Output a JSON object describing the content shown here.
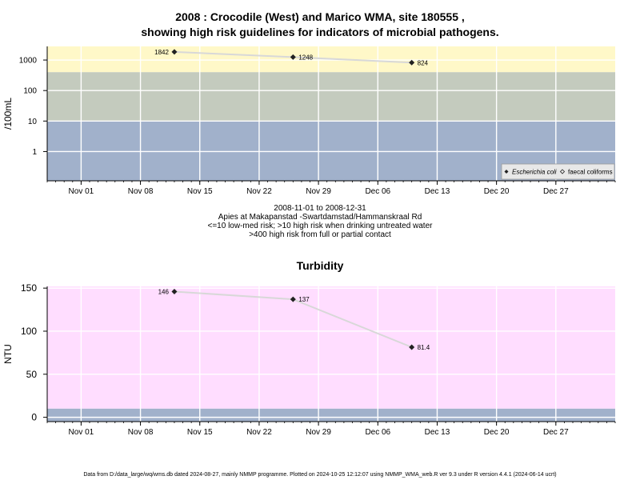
{
  "titles": {
    "main_line1": "2008 : Crocodile (West) and Marico WMA, site 180555 ,",
    "main_line2": "showing high risk guidelines for indicators of microbial pathogens.",
    "caption_line1": "2008-11-01 to 2008-12-31",
    "caption_line2": "Apies at Makapanstad -Swartdamstad/Hammanskraal Rd",
    "caption_line3": "<=10 low-med risk; >10 high risk when drinking untreated water",
    "caption_line4": ">400 high risk from full or partial contact",
    "turbidity": "Turbidity",
    "footer": "Data from D:/data_large/wq/wms.db dated 2024-08-27, mainly NMMP programme. Plotted on 2024-10-25 12:12:07 using NMMP_WMA_web.R ver 9.3 under R version 4.4.1 (2024-06-14 ucrt)"
  },
  "colors": {
    "risk_high": "#fff8c8",
    "risk_mid": "#c4cbbe",
    "risk_low": "#a1b1cb",
    "turbidity_bg": "#ffddff",
    "turbidity_low": "#a1b1cb",
    "grid": "#ffffff",
    "line": "#d8d8d8",
    "marker": "#222222"
  },
  "chart_data": [
    {
      "type": "scatter",
      "title": "",
      "ylabel": "/100mL",
      "y_scale": "log",
      "x_range": [
        "2008-10-28",
        "2009-01-03"
      ],
      "y_range": [
        0.11,
        2800
      ],
      "yticks": [
        1,
        10,
        100,
        1000
      ],
      "ytick_labels": [
        "1",
        "10",
        "100",
        "1000"
      ],
      "xticks": [
        "2008-11-01",
        "2008-11-08",
        "2008-11-15",
        "2008-11-22",
        "2008-11-29",
        "2008-12-06",
        "2008-12-13",
        "2008-12-20",
        "2008-12-27"
      ],
      "xtick_labels": [
        "Nov 01",
        "Nov 08",
        "Nov 15",
        "Nov 22",
        "Nov 29",
        "Dec 06",
        "Dec 13",
        "Dec 20",
        "Dec 27"
      ],
      "bands": [
        {
          "from": 400,
          "to": 2800,
          "color": "risk_high"
        },
        {
          "from": 10,
          "to": 400,
          "color": "risk_mid"
        },
        {
          "from": 0.11,
          "to": 10,
          "color": "risk_low"
        }
      ],
      "grid": true,
      "legend_placement": "bottom-right",
      "legend": [
        {
          "label": "Escherichia coli",
          "marker": "filled-diamond",
          "italic": true
        },
        {
          "label": "faecal coliforms",
          "marker": "open-diamond",
          "italic": false
        }
      ],
      "series": [
        {
          "name": "Escherichia coli",
          "points": [
            {
              "x": "2008-11-12",
              "y": 1842,
              "label": "1842",
              "label_side": "left"
            },
            {
              "x": "2008-11-26",
              "y": 1248,
              "label": "1248",
              "label_side": "right"
            },
            {
              "x": "2008-12-10",
              "y": 824,
              "label": "824",
              "label_side": "right"
            }
          ]
        }
      ]
    },
    {
      "type": "scatter",
      "title": "Turbidity",
      "ylabel": "NTU",
      "y_scale": "linear",
      "x_range": [
        "2008-10-28",
        "2009-01-03"
      ],
      "y_range": [
        -5,
        152
      ],
      "yticks": [
        0,
        50,
        100,
        150
      ],
      "ytick_labels": [
        "0",
        "50",
        "100",
        "150"
      ],
      "xticks": [
        "2008-11-01",
        "2008-11-08",
        "2008-11-15",
        "2008-11-22",
        "2008-11-29",
        "2008-12-06",
        "2008-12-13",
        "2008-12-20",
        "2008-12-27"
      ],
      "xtick_labels": [
        "Nov 01",
        "Nov 08",
        "Nov 15",
        "Nov 22",
        "Nov 29",
        "Dec 06",
        "Dec 13",
        "Dec 20",
        "Dec 27"
      ],
      "bands": [
        {
          "from": 10,
          "to": 152,
          "color": "turbidity_bg"
        },
        {
          "from": -5,
          "to": 10,
          "color": "turbidity_low"
        }
      ],
      "grid": true,
      "series": [
        {
          "name": "",
          "points": [
            {
              "x": "2008-11-12",
              "y": 146,
              "label": "146",
              "label_side": "left"
            },
            {
              "x": "2008-11-26",
              "y": 137,
              "label": "137",
              "label_side": "right"
            },
            {
              "x": "2008-12-10",
              "y": 81.4,
              "label": "81.4",
              "label_side": "right"
            }
          ]
        }
      ]
    }
  ]
}
